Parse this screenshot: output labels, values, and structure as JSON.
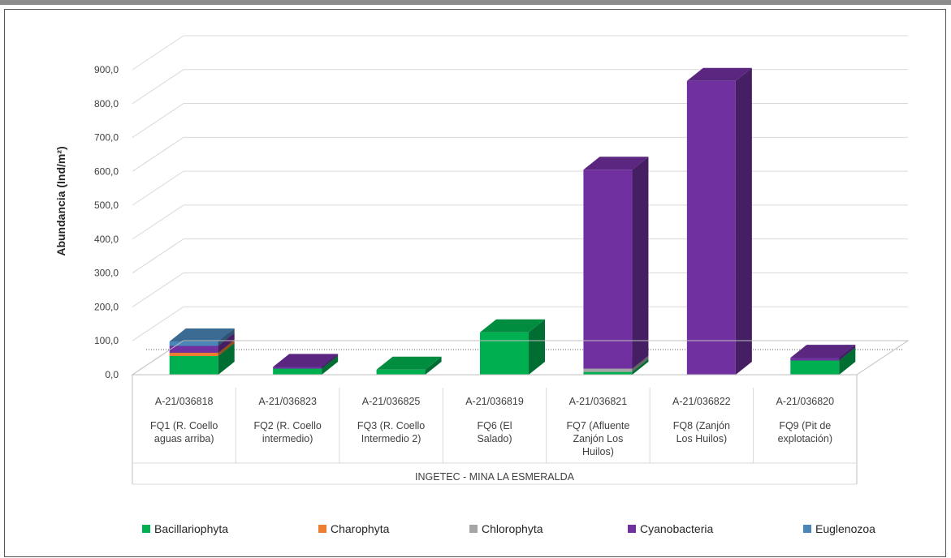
{
  "chart_data": {
    "type": "bar",
    "stacked": true,
    "three_d": true,
    "ylabel": "Abundancia (Ind/m²)",
    "ylim": [
      0,
      900
    ],
    "yticks": [
      "0,0",
      "100,0",
      "200,0",
      "300,0",
      "400,0",
      "500,0",
      "600,0",
      "700,0",
      "800,0",
      "900,0"
    ],
    "group_label": "INGETEC - MINA LA ESMERALDA",
    "categories": [
      {
        "code": "A-21/036818",
        "name": [
          "FQ1 (R. Coello",
          "aguas arriba)"
        ]
      },
      {
        "code": "A-21/036823",
        "name": [
          "FQ2 (R. Coello",
          "intermedio)"
        ]
      },
      {
        "code": "A-21/036825",
        "name": [
          "FQ3 (R. Coello",
          "Intermedio 2)"
        ]
      },
      {
        "code": "A-21/036819",
        "name": [
          "FQ6 (El",
          "Salado)"
        ]
      },
      {
        "code": "A-21/036821",
        "name": [
          "FQ7 (Afluente",
          "Zanjón Los",
          "Huilos)"
        ]
      },
      {
        "code": "A-21/036822",
        "name": [
          "FQ8 (Zanjón",
          "Los Huilos)"
        ]
      },
      {
        "code": "A-21/036820",
        "name": [
          "FQ9 (Pit de",
          "explotación)"
        ]
      }
    ],
    "series": [
      {
        "name": "Bacillariophyta",
        "color": "#00b050",
        "values": [
          55,
          18,
          15,
          125,
          8,
          0,
          42
        ]
      },
      {
        "name": "Charophyta",
        "color": "#ed7d31",
        "values": [
          10,
          0,
          0,
          0,
          0,
          0,
          0
        ]
      },
      {
        "name": "Chlorophyta",
        "color": "#a5a5a5",
        "values": [
          0,
          0,
          0,
          0,
          10,
          0,
          0
        ]
      },
      {
        "name": "Cyanobacteria",
        "color": "#7030a0",
        "values": [
          20,
          5,
          0,
          0,
          587,
          867,
          8
        ]
      },
      {
        "name": "Euglenozoa",
        "color": "#4a86b8",
        "values": [
          13,
          0,
          0,
          0,
          0,
          0,
          0
        ]
      }
    ],
    "legend_position": "bottom",
    "grid": true
  }
}
